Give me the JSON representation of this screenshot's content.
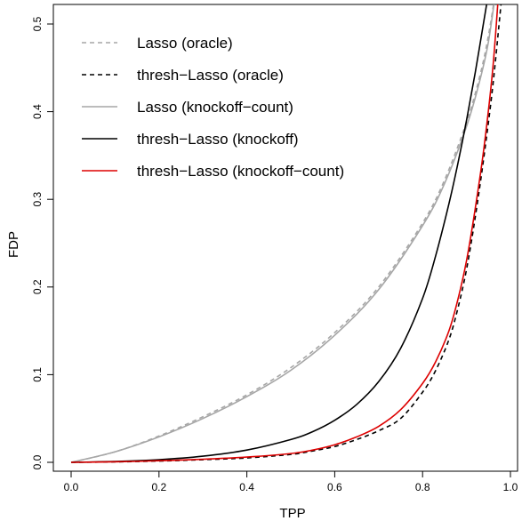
{
  "chart_data": {
    "type": "line",
    "title": "",
    "xlabel": "TPP",
    "ylabel": "FDP",
    "xlim": [
      0,
      1
    ],
    "ylim": [
      0,
      0.5
    ],
    "x_ticks": [
      "0.0",
      "0.2",
      "0.4",
      "0.6",
      "0.8",
      "1.0"
    ],
    "y_ticks": [
      "0.0",
      "0.1",
      "0.2",
      "0.3",
      "0.4",
      "0.5"
    ],
    "legend_position": "top-left",
    "series": [
      {
        "name": "Lasso (oracle)",
        "color": "#a6a6a6",
        "dash": "dashed",
        "x": [
          0,
          0.1,
          0.2,
          0.3,
          0.4,
          0.5,
          0.6,
          0.7,
          0.8,
          0.85,
          0.9,
          0.93,
          0.95,
          0.97
        ],
        "y": [
          0,
          0.012,
          0.03,
          0.052,
          0.077,
          0.108,
          0.148,
          0.2,
          0.273,
          0.322,
          0.388,
          0.44,
          0.487,
          0.55
        ]
      },
      {
        "name": "thresh−Lasso (oracle)",
        "color": "#000000",
        "dash": "dashed",
        "x": [
          0,
          0.1,
          0.2,
          0.3,
          0.4,
          0.5,
          0.55,
          0.6,
          0.65,
          0.7,
          0.75,
          0.8,
          0.83,
          0.86,
          0.88,
          0.9,
          0.92,
          0.94,
          0.96,
          0.98
        ],
        "y": [
          0,
          0.0005,
          0.0015,
          0.003,
          0.005,
          0.009,
          0.013,
          0.018,
          0.026,
          0.036,
          0.05,
          0.08,
          0.105,
          0.14,
          0.175,
          0.22,
          0.28,
          0.35,
          0.43,
          0.53
        ]
      },
      {
        "name": "Lasso (knockoff−count)",
        "color": "#a6a6a6",
        "dash": "solid",
        "x": [
          0,
          0.1,
          0.2,
          0.3,
          0.4,
          0.5,
          0.6,
          0.7,
          0.8,
          0.85,
          0.9,
          0.93,
          0.95,
          0.97
        ],
        "y": [
          0,
          0.012,
          0.029,
          0.05,
          0.075,
          0.105,
          0.145,
          0.197,
          0.27,
          0.318,
          0.383,
          0.435,
          0.48,
          0.55
        ]
      },
      {
        "name": "thresh−Lasso (knockoff)",
        "color": "#000000",
        "dash": "solid",
        "x": [
          0,
          0.1,
          0.2,
          0.3,
          0.4,
          0.5,
          0.55,
          0.6,
          0.65,
          0.7,
          0.75,
          0.8,
          0.83,
          0.86,
          0.88,
          0.9,
          0.92,
          0.94,
          0.955
        ],
        "y": [
          0,
          0.001,
          0.003,
          0.007,
          0.014,
          0.026,
          0.035,
          0.048,
          0.066,
          0.092,
          0.13,
          0.187,
          0.236,
          0.295,
          0.34,
          0.39,
          0.445,
          0.505,
          0.55
        ]
      },
      {
        "name": "thresh−Lasso (knockoff−count)",
        "color": "#dd0000",
        "dash": "solid",
        "x": [
          0,
          0.1,
          0.2,
          0.3,
          0.4,
          0.5,
          0.55,
          0.6,
          0.65,
          0.7,
          0.75,
          0.8,
          0.83,
          0.86,
          0.88,
          0.9,
          0.92,
          0.94,
          0.96,
          0.975
        ],
        "y": [
          0,
          0.0006,
          0.0018,
          0.0035,
          0.006,
          0.01,
          0.014,
          0.02,
          0.029,
          0.041,
          0.06,
          0.09,
          0.115,
          0.15,
          0.185,
          0.23,
          0.29,
          0.36,
          0.45,
          0.55
        ]
      }
    ]
  }
}
